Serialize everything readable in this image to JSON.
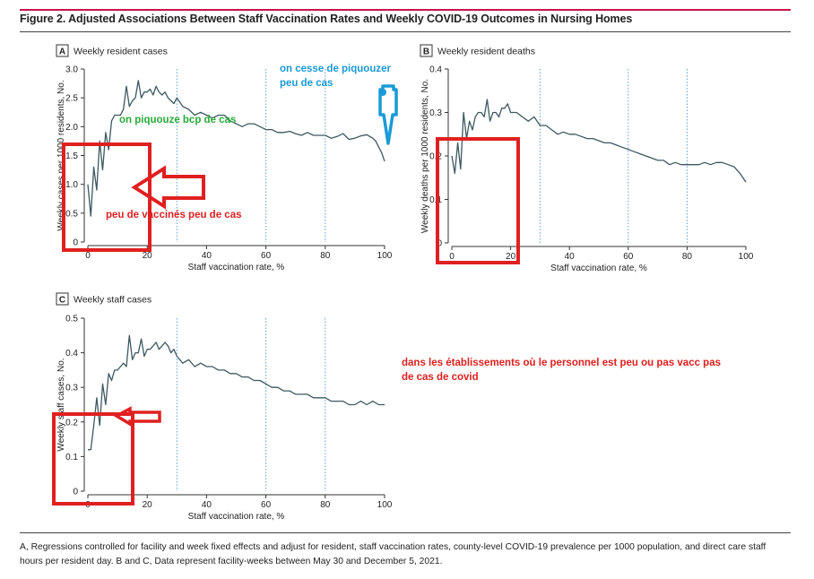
{
  "figure": {
    "title": "Figure 2. Adjusted Associations Between Staff Vaccination Rates and Weekly COVID-19 Outcomes in Nursing Homes",
    "caption": "A, Regressions controlled for facility and week fixed effects and adjust for resident, staff vaccination rates, county-level COVID-19 prevalence per 1000 population, and direct care staff hours per resident day. B and C, Data represent facility-weeks between May 30 and December 5, 2021."
  },
  "colors": {
    "line": "#3d5860",
    "refline": "#5b9fd6",
    "accent": "#c8124b",
    "annot_red": "#e02020",
    "annot_blue": "#1a9ad6",
    "annot_green": "#2aaa3a"
  },
  "chart_data": [
    {
      "panel": "A",
      "type": "line",
      "title": "Weekly resident cases",
      "xlabel": "Staff vaccination rate, %",
      "ylabel": "Weekly cases per 1000 residents, No.",
      "xlim": [
        0,
        100
      ],
      "ylim": [
        0,
        3.0
      ],
      "xticks": [
        0,
        20,
        40,
        60,
        80,
        100
      ],
      "yticks": [
        0,
        0.5,
        1.0,
        1.5,
        2.0,
        2.5,
        3.0
      ],
      "ytick_labels": [
        "0",
        "0.5",
        "1.0",
        "1.5",
        "2.0",
        "2.5",
        "3.0"
      ],
      "reference_lines_x": [
        30,
        60,
        80
      ],
      "series": [
        {
          "name": "Weekly resident cases",
          "x": [
            0,
            1,
            2,
            3,
            4,
            5,
            6,
            7,
            8,
            9,
            10,
            11,
            12,
            13,
            14,
            15,
            16,
            17,
            18,
            19,
            20,
            21,
            22,
            23,
            24,
            25,
            26,
            27,
            28,
            29,
            30,
            32,
            34,
            36,
            38,
            40,
            42,
            44,
            46,
            48,
            50,
            52,
            54,
            56,
            58,
            60,
            62,
            64,
            66,
            68,
            70,
            72,
            74,
            76,
            78,
            80,
            82,
            84,
            86,
            88,
            90,
            92,
            94,
            96,
            97,
            98,
            99,
            100
          ],
          "y": [
            1.0,
            0.45,
            1.3,
            0.9,
            1.75,
            1.25,
            1.9,
            1.6,
            2.1,
            2.2,
            2.2,
            2.2,
            2.3,
            2.7,
            2.35,
            2.45,
            2.5,
            2.8,
            2.5,
            2.6,
            2.6,
            2.65,
            2.55,
            2.7,
            2.6,
            2.55,
            2.6,
            2.5,
            2.45,
            2.4,
            2.5,
            2.35,
            2.3,
            2.2,
            2.25,
            2.2,
            2.15,
            2.2,
            2.2,
            2.1,
            2.05,
            2.0,
            2.05,
            2.05,
            2.0,
            1.95,
            1.95,
            1.9,
            1.9,
            1.92,
            1.88,
            1.85,
            1.9,
            1.85,
            1.85,
            1.85,
            1.8,
            1.83,
            1.88,
            1.78,
            1.8,
            1.84,
            1.86,
            1.8,
            1.75,
            1.65,
            1.55,
            1.4
          ]
        }
      ],
      "annotations": [
        {
          "text": "on cesse de piquouzer",
          "color": "blue"
        },
        {
          "text": "peu de cas",
          "color": "blue"
        },
        {
          "text": "on piquouze bcp de cas",
          "color": "green"
        },
        {
          "text": "peu de vaccinés peu de cas",
          "color": "red"
        }
      ]
    },
    {
      "panel": "B",
      "type": "line",
      "title": "Weekly resident deaths",
      "xlabel": "Staff vaccination rate, %",
      "ylabel": "Weekly deaths per 1000 residents, No.",
      "xlim": [
        0,
        100
      ],
      "ylim": [
        0,
        0.4
      ],
      "xticks": [
        0,
        20,
        40,
        60,
        80,
        100
      ],
      "yticks": [
        0,
        0.1,
        0.2,
        0.3,
        0.4
      ],
      "ytick_labels": [
        "0",
        "0.1",
        "0.2",
        "0.3",
        "0.4"
      ],
      "reference_lines_x": [
        30,
        60,
        80
      ],
      "series": [
        {
          "name": "Weekly resident deaths",
          "x": [
            0,
            1,
            2,
            3,
            4,
            5,
            6,
            7,
            8,
            9,
            10,
            11,
            12,
            13,
            14,
            15,
            16,
            17,
            18,
            19,
            20,
            21,
            22,
            24,
            26,
            28,
            30,
            32,
            34,
            36,
            38,
            40,
            42,
            44,
            46,
            48,
            50,
            52,
            54,
            56,
            58,
            60,
            62,
            64,
            66,
            68,
            70,
            72,
            74,
            76,
            78,
            80,
            82,
            84,
            86,
            88,
            90,
            92,
            94,
            96,
            98,
            100
          ],
          "y": [
            0.2,
            0.16,
            0.23,
            0.17,
            0.3,
            0.24,
            0.28,
            0.26,
            0.29,
            0.3,
            0.3,
            0.29,
            0.33,
            0.28,
            0.3,
            0.3,
            0.29,
            0.31,
            0.31,
            0.32,
            0.3,
            0.3,
            0.3,
            0.29,
            0.28,
            0.29,
            0.27,
            0.27,
            0.26,
            0.25,
            0.255,
            0.25,
            0.25,
            0.245,
            0.24,
            0.24,
            0.235,
            0.23,
            0.23,
            0.225,
            0.22,
            0.215,
            0.21,
            0.205,
            0.2,
            0.195,
            0.19,
            0.19,
            0.18,
            0.185,
            0.18,
            0.18,
            0.18,
            0.18,
            0.185,
            0.18,
            0.185,
            0.185,
            0.18,
            0.175,
            0.16,
            0.14
          ]
        }
      ]
    },
    {
      "panel": "C",
      "type": "line",
      "title": "Weekly staff cases",
      "xlabel": "Staff vaccination rate, %",
      "ylabel": "Weekly staff cases, No.",
      "xlim": [
        0,
        100
      ],
      "ylim": [
        0,
        0.5
      ],
      "xticks": [
        0,
        20,
        40,
        60,
        80,
        100
      ],
      "yticks": [
        0,
        0.1,
        0.2,
        0.3,
        0.4,
        0.5
      ],
      "ytick_labels": [
        "0",
        "0.1",
        "0.2",
        "0.3",
        "0.4",
        "0.5"
      ],
      "reference_lines_x": [
        30,
        60,
        80
      ],
      "series": [
        {
          "name": "Weekly staff cases",
          "x": [
            0,
            1,
            2,
            3,
            4,
            5,
            6,
            7,
            8,
            9,
            10,
            11,
            12,
            13,
            14,
            15,
            16,
            17,
            18,
            19,
            20,
            21,
            22,
            23,
            24,
            25,
            26,
            27,
            28,
            29,
            30,
            32,
            34,
            36,
            38,
            40,
            42,
            44,
            46,
            48,
            50,
            52,
            54,
            56,
            58,
            60,
            62,
            64,
            66,
            68,
            70,
            72,
            74,
            76,
            78,
            80,
            82,
            84,
            86,
            88,
            90,
            92,
            94,
            96,
            98,
            100
          ],
          "y": [
            0.12,
            0.12,
            0.19,
            0.27,
            0.19,
            0.31,
            0.25,
            0.34,
            0.32,
            0.35,
            0.35,
            0.36,
            0.37,
            0.36,
            0.45,
            0.38,
            0.4,
            0.4,
            0.44,
            0.39,
            0.41,
            0.41,
            0.42,
            0.43,
            0.41,
            0.42,
            0.43,
            0.42,
            0.4,
            0.41,
            0.39,
            0.37,
            0.38,
            0.36,
            0.37,
            0.36,
            0.36,
            0.35,
            0.35,
            0.34,
            0.34,
            0.33,
            0.33,
            0.32,
            0.32,
            0.31,
            0.3,
            0.3,
            0.29,
            0.29,
            0.28,
            0.28,
            0.28,
            0.27,
            0.27,
            0.27,
            0.26,
            0.26,
            0.26,
            0.25,
            0.25,
            0.26,
            0.25,
            0.26,
            0.25,
            0.25
          ]
        }
      ],
      "annotations": [
        {
          "text": "dans les établissements où le personnel est peu ou pas vacc pas",
          "color": "red"
        },
        {
          "text": "de cas de covid",
          "color": "red"
        }
      ]
    }
  ]
}
